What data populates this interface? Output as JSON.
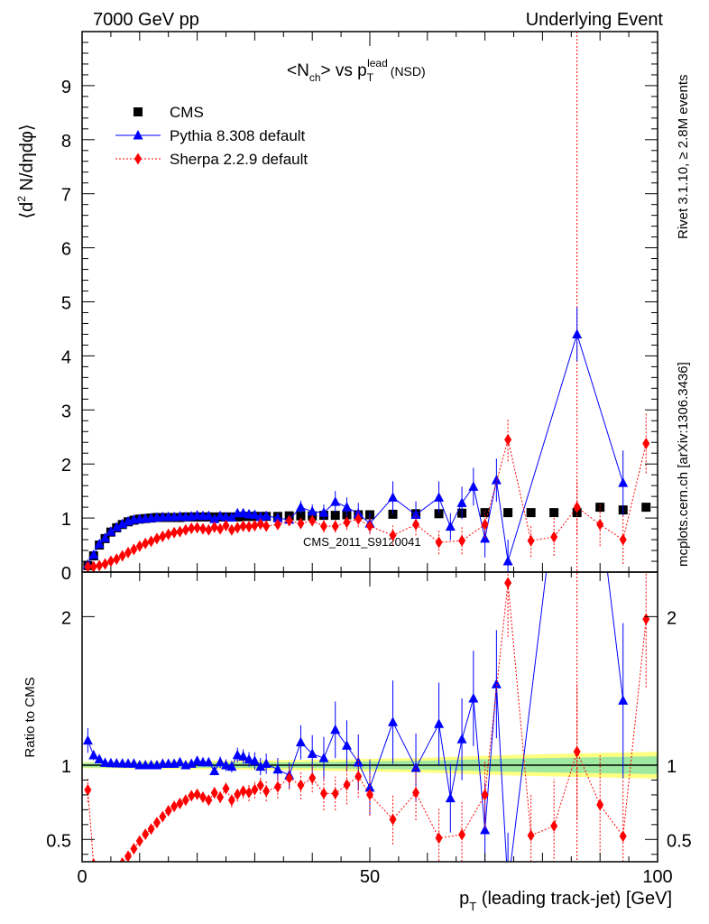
{
  "header": {
    "left": "7000 GeV pp",
    "right": "Underlying Event"
  },
  "side": {
    "rivet": "Rivet 3.1.10, ≥ 2.8M events",
    "site": "mcplots.cern.ch [arXiv:1306.3436]"
  },
  "watermark": "CMS_2011_S9120041",
  "chart_data": {
    "type": "scatter",
    "title": "<N_ch> vs p_T^lead (NSD)",
    "title_parts": {
      "a": "<N",
      "a_sub": "ch",
      "b": "> vs p",
      "b_sub": "T",
      "b_sup": "lead",
      "c": "(NSD)"
    },
    "xlabel": "p_T (leading track-jet) [GeV]",
    "xlabel_parts": {
      "a": "p",
      "a_sub": "T",
      "b": " (leading track-jet) [GeV]"
    },
    "ylabel": "⟨d² N/dηdφ⟩",
    "ylabel_parts": {
      "a": "⟨d",
      "a_sup": "2",
      "b": " N/dηdφ⟩"
    },
    "ratio_ylabel": "Ratio to CMS",
    "xlim": [
      0,
      100
    ],
    "ylim": [
      0,
      10
    ],
    "ratio_ylim": [
      0.35,
      2.3
    ],
    "x_ticks": [
      "0",
      "50",
      "100"
    ],
    "y_ticks": [
      "0",
      "1",
      "2",
      "3",
      "4",
      "5",
      "6",
      "7",
      "8",
      "9"
    ],
    "ratio_ticks": [
      "0.5",
      "1",
      "2"
    ],
    "grid": false,
    "legend_position": "top-left",
    "vertical_line_x": 86,
    "series": [
      {
        "name": "CMS",
        "color": "#000000",
        "marker": "square",
        "points": [
          [
            1,
            0.12
          ],
          [
            2,
            0.3
          ],
          [
            3,
            0.5
          ],
          [
            4,
            0.62
          ],
          [
            5,
            0.74
          ],
          [
            6,
            0.82
          ],
          [
            7,
            0.88
          ],
          [
            8,
            0.93
          ],
          [
            9,
            0.96
          ],
          [
            10,
            0.98
          ],
          [
            11,
            0.99
          ],
          [
            12,
            1.0
          ],
          [
            13,
            1.01
          ],
          [
            14,
            1.01
          ],
          [
            15,
            1.01
          ],
          [
            16,
            1.01
          ],
          [
            17,
            1.01
          ],
          [
            18,
            1.02
          ],
          [
            19,
            1.02
          ],
          [
            20,
            1.02
          ],
          [
            21,
            1.02
          ],
          [
            22,
            1.02
          ],
          [
            23,
            1.02
          ],
          [
            24,
            1.02
          ],
          [
            25,
            1.02
          ],
          [
            26,
            1.02
          ],
          [
            27,
            1.02
          ],
          [
            28,
            1.03
          ],
          [
            29,
            1.03
          ],
          [
            30,
            1.03
          ],
          [
            31,
            1.03
          ],
          [
            32,
            1.03
          ],
          [
            34,
            1.03
          ],
          [
            36,
            1.04
          ],
          [
            38,
            1.04
          ],
          [
            40,
            1.04
          ],
          [
            42,
            1.05
          ],
          [
            44,
            1.05
          ],
          [
            46,
            1.06
          ],
          [
            48,
            1.06
          ],
          [
            50,
            1.06
          ],
          [
            54,
            1.07
          ],
          [
            58,
            1.08
          ],
          [
            62,
            1.08
          ],
          [
            66,
            1.09
          ],
          [
            70,
            1.1
          ],
          [
            74,
            1.1
          ],
          [
            78,
            1.1
          ],
          [
            82,
            1.1
          ],
          [
            86,
            1.1
          ],
          [
            90,
            1.2
          ],
          [
            94,
            1.15
          ],
          [
            98,
            1.2
          ]
        ]
      },
      {
        "name": "Pythia 8.308 default",
        "color": "#0000ff",
        "marker": "triangle",
        "points": [
          [
            1,
            0.14
          ],
          [
            2,
            0.32
          ],
          [
            3,
            0.52
          ],
          [
            4,
            0.63
          ],
          [
            5,
            0.75
          ],
          [
            6,
            0.83
          ],
          [
            7,
            0.89
          ],
          [
            8,
            0.94
          ],
          [
            9,
            0.97
          ],
          [
            10,
            0.98
          ],
          [
            11,
            0.99
          ],
          [
            12,
            1.0
          ],
          [
            13,
            1.01
          ],
          [
            14,
            1.02
          ],
          [
            15,
            1.02
          ],
          [
            16,
            1.02
          ],
          [
            17,
            1.03
          ],
          [
            18,
            1.02
          ],
          [
            19,
            1.03
          ],
          [
            20,
            1.05
          ],
          [
            21,
            1.04
          ],
          [
            22,
            1.04
          ],
          [
            23,
            0.98
          ],
          [
            24,
            1.04
          ],
          [
            25,
            1.02
          ],
          [
            26,
            1.01
          ],
          [
            27,
            1.09
          ],
          [
            28,
            1.09
          ],
          [
            29,
            1.07
          ],
          [
            30,
            1.06
          ],
          [
            31,
            1.02
          ],
          [
            32,
            1.04
          ],
          [
            34,
            1.0
          ],
          [
            36,
            0.97
          ],
          [
            38,
            1.2
          ],
          [
            40,
            1.12
          ],
          [
            42,
            1.1
          ],
          [
            44,
            1.3
          ],
          [
            46,
            1.2
          ],
          [
            48,
            1.08
          ],
          [
            50,
            0.9
          ],
          [
            54,
            1.38
          ],
          [
            58,
            1.06
          ],
          [
            62,
            1.38
          ],
          [
            64,
            0.84
          ],
          [
            66,
            1.28
          ],
          [
            68,
            1.58
          ],
          [
            70,
            0.62
          ],
          [
            72,
            1.7
          ],
          [
            74,
            0.2
          ],
          [
            86,
            4.4
          ],
          [
            94,
            1.65
          ]
        ],
        "errors": [
          0.01,
          0.01,
          0.01,
          0.01,
          0.01,
          0.01,
          0.01,
          0.01,
          0.01,
          0.01,
          0.01,
          0.01,
          0.01,
          0.02,
          0.02,
          0.02,
          0.02,
          0.02,
          0.02,
          0.03,
          0.03,
          0.03,
          0.03,
          0.04,
          0.04,
          0.04,
          0.05,
          0.05,
          0.05,
          0.06,
          0.06,
          0.07,
          0.08,
          0.09,
          0.12,
          0.13,
          0.15,
          0.2,
          0.18,
          0.2,
          0.2,
          0.3,
          0.25,
          0.3,
          0.25,
          0.3,
          0.35,
          0.35,
          0.4,
          0.4,
          0.5,
          0.6
        ]
      },
      {
        "name": "Sherpa 2.2.9 default",
        "color": "#ff0000",
        "marker": "diamond",
        "points": [
          [
            1,
            0.1
          ],
          [
            2,
            0.1
          ],
          [
            3,
            0.12
          ],
          [
            4,
            0.15
          ],
          [
            5,
            0.2
          ],
          [
            6,
            0.24
          ],
          [
            7,
            0.3
          ],
          [
            8,
            0.36
          ],
          [
            9,
            0.42
          ],
          [
            10,
            0.48
          ],
          [
            11,
            0.53
          ],
          [
            12,
            0.57
          ],
          [
            13,
            0.62
          ],
          [
            14,
            0.66
          ],
          [
            15,
            0.7
          ],
          [
            16,
            0.73
          ],
          [
            17,
            0.75
          ],
          [
            18,
            0.78
          ],
          [
            19,
            0.81
          ],
          [
            20,
            0.82
          ],
          [
            21,
            0.8
          ],
          [
            22,
            0.78
          ],
          [
            23,
            0.83
          ],
          [
            24,
            0.8
          ],
          [
            25,
            0.86
          ],
          [
            26,
            0.78
          ],
          [
            27,
            0.82
          ],
          [
            28,
            0.85
          ],
          [
            29,
            0.84
          ],
          [
            30,
            0.86
          ],
          [
            31,
            0.89
          ],
          [
            32,
            0.85
          ],
          [
            34,
            0.88
          ],
          [
            36,
            0.95
          ],
          [
            38,
            0.9
          ],
          [
            40,
            0.95
          ],
          [
            42,
            0.85
          ],
          [
            44,
            0.85
          ],
          [
            46,
            0.92
          ],
          [
            48,
            0.98
          ],
          [
            50,
            0.85
          ],
          [
            54,
            0.68
          ],
          [
            58,
            0.88
          ],
          [
            62,
            0.55
          ],
          [
            66,
            0.58
          ],
          [
            70,
            0.88
          ],
          [
            74,
            2.45
          ],
          [
            78,
            0.58
          ],
          [
            82,
            0.65
          ],
          [
            86,
            1.2
          ],
          [
            90,
            0.88
          ],
          [
            94,
            0.6
          ],
          [
            98,
            2.38
          ]
        ],
        "errors": [
          0.01,
          0.01,
          0.01,
          0.01,
          0.01,
          0.01,
          0.01,
          0.01,
          0.01,
          0.01,
          0.01,
          0.01,
          0.01,
          0.02,
          0.02,
          0.02,
          0.02,
          0.02,
          0.03,
          0.03,
          0.03,
          0.03,
          0.04,
          0.04,
          0.04,
          0.05,
          0.05,
          0.05,
          0.06,
          0.06,
          0.06,
          0.07,
          0.08,
          0.08,
          0.1,
          0.1,
          0.12,
          0.12,
          0.14,
          0.15,
          0.15,
          0.18,
          0.2,
          0.22,
          0.25,
          0.25,
          0.4,
          0.3,
          0.35,
          0.5,
          0.4,
          0.45,
          0.55
        ]
      }
    ]
  }
}
